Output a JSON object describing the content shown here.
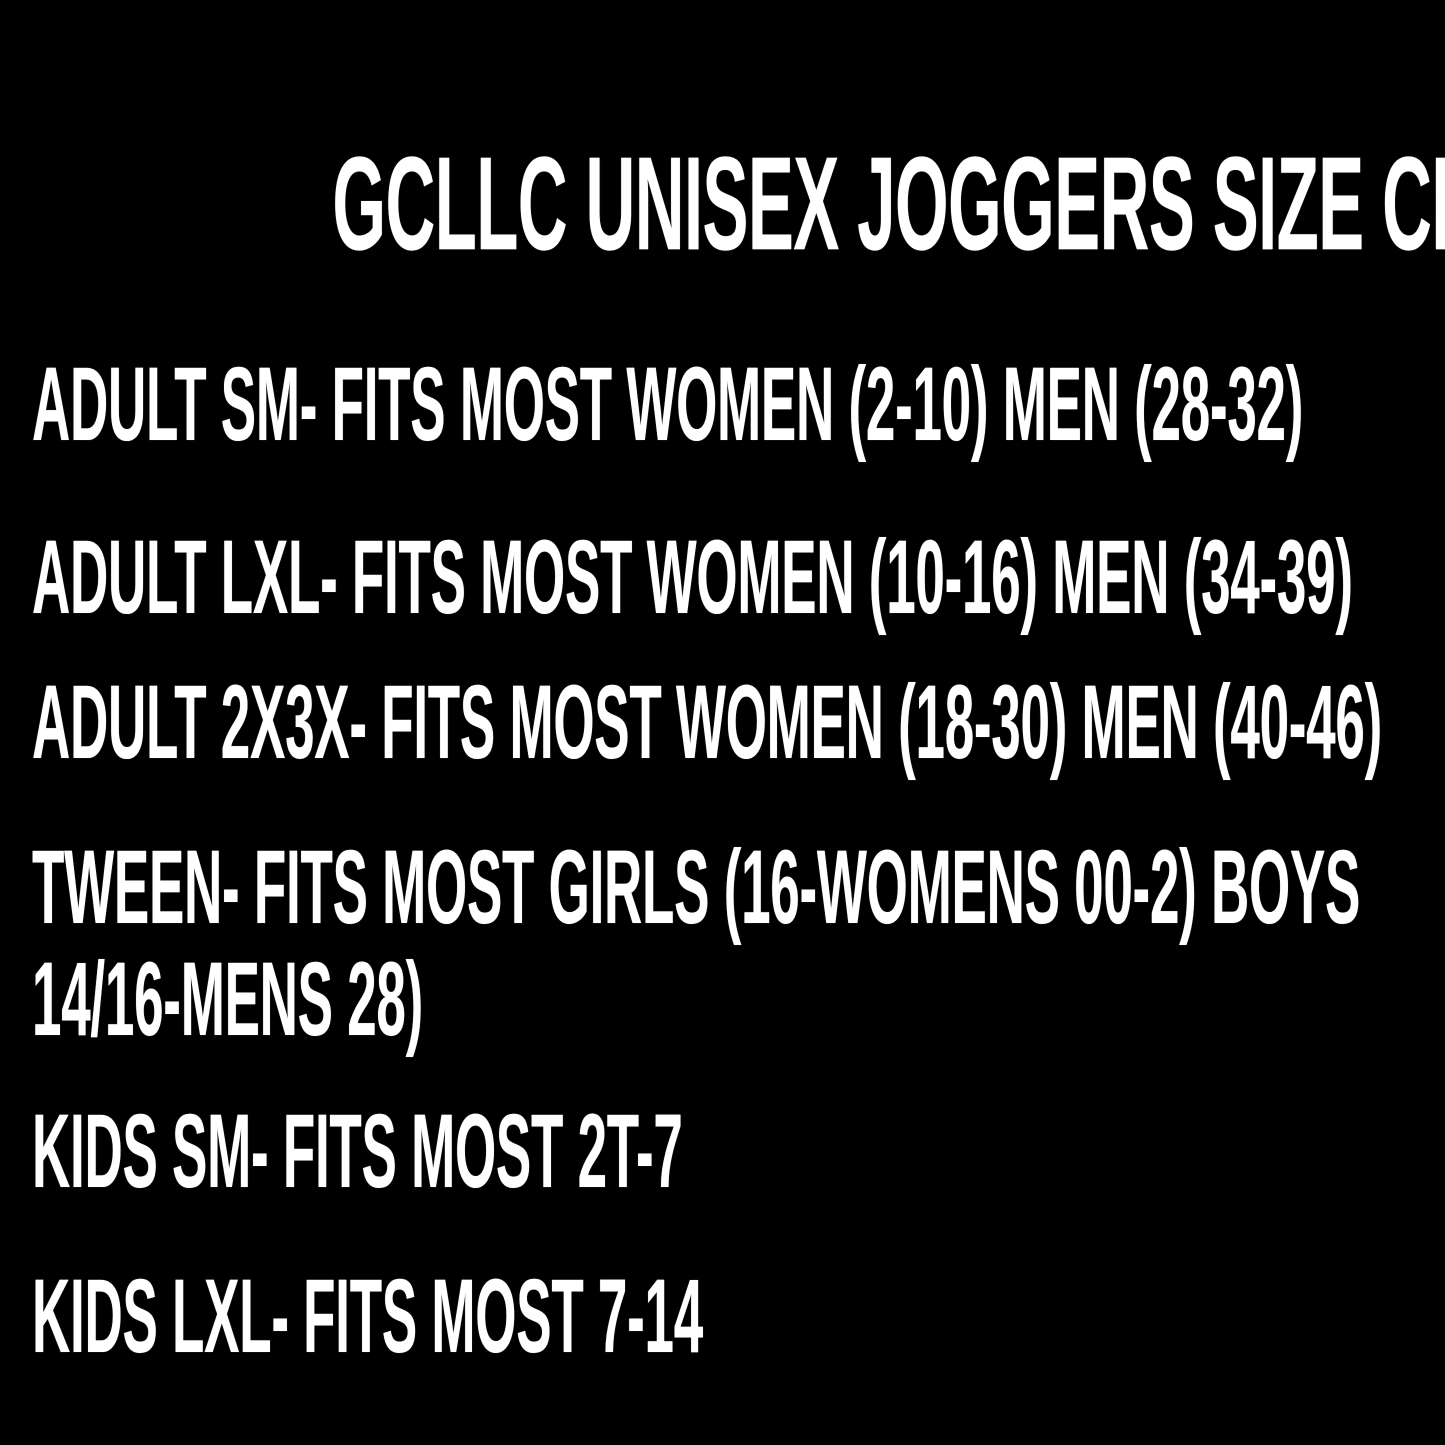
{
  "page": {
    "title": "GCLLC UNISEX JOGGERS SIZE CHART",
    "colors": {
      "background": "#000000",
      "text": "#ffffff"
    },
    "lines": [
      "ADULT SM- FITS MOST WOMEN (2-10) MEN (28-32)",
      "ADULT LXL- FITS MOST WOMEN (10-16) MEN (34-39)",
      "ADULT 2X3X- FITS MOST WOMEN (18-30) MEN (40-46)",
      "TWEEN- FITS MOST GIRLS (16-WOMENS 00-2) BOYS",
      "14/16-MENS 28)",
      "KIDS SM- FITS MOST 2T-7",
      "KIDS LXL- FITS MOST 7-14"
    ],
    "sizes": [
      {
        "size": "ADULT SM",
        "fits": "FITS MOST WOMEN (2-10) MEN (28-32)"
      },
      {
        "size": "ADULT LXL",
        "fits": "FITS MOST WOMEN (10-16) MEN (34-39)"
      },
      {
        "size": "ADULT 2X3X",
        "fits": "FITS MOST WOMEN (18-30) MEN (40-46)"
      },
      {
        "size": "TWEEN",
        "fits": "FITS MOST GIRLS (16-WOMENS 00-2) BOYS 14/16-MENS 28)"
      },
      {
        "size": "KIDS SM",
        "fits": "FITS MOST 2T-7"
      },
      {
        "size": "KIDS LXL",
        "fits": "FITS MOST 7-14"
      }
    ]
  }
}
